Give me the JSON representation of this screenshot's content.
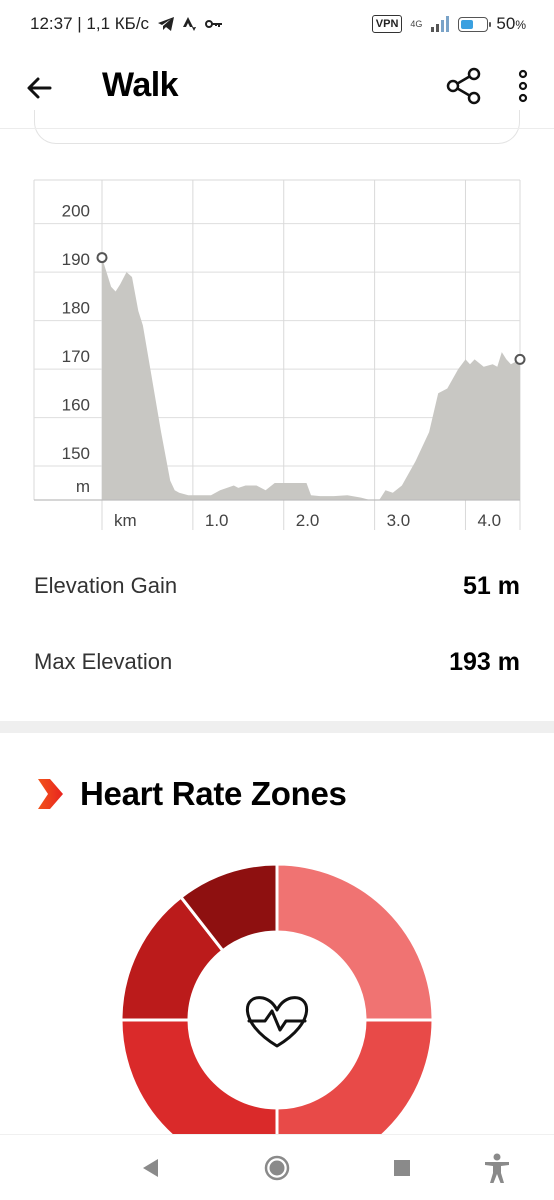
{
  "status_bar": {
    "time_speed": "12:37 | 1,1 КБ/с",
    "vpn": "VPN",
    "network": "4G",
    "battery": "50",
    "battery_unit": "%",
    "battery_level": 0.5,
    "icons": [
      "telegram-icon",
      "strava-icon",
      "key-icon",
      "signal-icon",
      "battery-icon"
    ]
  },
  "appbar": {
    "title": "Walk",
    "icons": [
      "back-arrow-icon",
      "share-icon",
      "more-vert-icon"
    ]
  },
  "chart_data": {
    "type": "area",
    "title": "",
    "xlabel": "km",
    "ylabel": "m",
    "x_ticks": [
      "1.0",
      "2.0",
      "3.0",
      "4.0"
    ],
    "y_ticks": [
      "200",
      "190",
      "180",
      "170",
      "160",
      "150"
    ],
    "xlim": [
      0,
      4.6
    ],
    "ylim": [
      143,
      209
    ],
    "grid": true,
    "fill_color": "#c8c7c3",
    "x": [
      0.0,
      0.05,
      0.1,
      0.15,
      0.2,
      0.27,
      0.33,
      0.4,
      0.45,
      0.55,
      0.65,
      0.75,
      0.8,
      0.85,
      0.95,
      1.1,
      1.2,
      1.3,
      1.45,
      1.5,
      1.58,
      1.7,
      1.8,
      1.9,
      1.95,
      2.1,
      2.25,
      2.3,
      2.4,
      2.55,
      2.7,
      2.85,
      2.95,
      3.05,
      3.12,
      3.2,
      3.3,
      3.45,
      3.6,
      3.7,
      3.8,
      3.92,
      4.0,
      4.05,
      4.1,
      4.2,
      4.3,
      4.35,
      4.4,
      4.45,
      4.5,
      4.6
    ],
    "y": [
      193,
      190,
      187,
      186,
      187.5,
      190,
      189,
      182,
      179,
      168,
      157,
      147,
      145,
      144.5,
      144,
      144,
      144,
      145,
      146,
      145.5,
      146,
      146,
      145,
      146.5,
      146.5,
      146.5,
      146.5,
      144,
      143.8,
      143.8,
      144,
      143.5,
      143,
      143,
      145,
      144.5,
      146,
      151,
      157,
      165,
      166,
      170,
      172,
      171,
      172,
      170.5,
      171,
      170.5,
      173.5,
      172,
      171,
      172
    ],
    "start_point": [
      0.0,
      193
    ],
    "end_point": [
      4.6,
      172
    ]
  },
  "stats": {
    "elevation_gain_label": "Elevation Gain",
    "elevation_gain_value": "51 m",
    "max_elevation_label": "Max Elevation",
    "max_elevation_value": "193 m"
  },
  "heart_rate": {
    "title": "Heart Rate Zones",
    "icons": [
      "chevron-marker-icon",
      "heart-pulse-icon"
    ],
    "segments": [
      {
        "color": "#f07372",
        "start_deg": 0,
        "end_deg": 90
      },
      {
        "color": "#e84a48",
        "start_deg": 90,
        "end_deg": 180
      },
      {
        "color": "#da2a2a",
        "start_deg": 180,
        "end_deg": 270
      },
      {
        "color": "#bb1b1b",
        "start_deg": 270,
        "end_deg": 322
      },
      {
        "color": "#8e1010",
        "start_deg": 322,
        "end_deg": 360
      }
    ]
  },
  "navbar": {
    "icons": [
      "nav-back-icon",
      "nav-home-icon",
      "nav-recents-icon",
      "accessibility-icon"
    ]
  }
}
